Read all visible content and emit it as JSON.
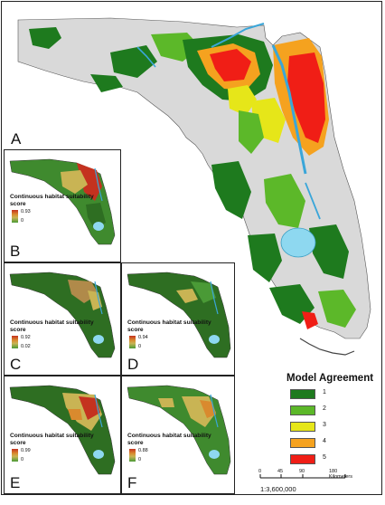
{
  "main_panel": {
    "label": "A"
  },
  "insets": [
    {
      "label": "B",
      "legend_title": "Continuous habitat suitability score",
      "max": "0.93",
      "min": "0"
    },
    {
      "label": "C",
      "legend_title": "Continuous habitat suitability score",
      "max": "0.92",
      "min": "0.02"
    },
    {
      "label": "D",
      "legend_title": "Continuous habitat suitability score",
      "max": "0.94",
      "min": "0"
    },
    {
      "label": "E",
      "legend_title": "Continuous habitat suitability score",
      "max": "0.99",
      "min": "0"
    },
    {
      "label": "F",
      "legend_title": "Continuous habitat suitability score",
      "max": "0.88",
      "min": "0"
    }
  ],
  "legend": {
    "title": "Model Agreement",
    "items": [
      {
        "label": "1",
        "color": "#1e7a1e"
      },
      {
        "label": "2",
        "color": "#5cb829"
      },
      {
        "label": "3",
        "color": "#e6e619"
      },
      {
        "label": "4",
        "color": "#f5a21f"
      },
      {
        "label": "5",
        "color": "#f01e16"
      }
    ]
  },
  "scale_bar": {
    "ticks": [
      "0",
      "45",
      "90",
      "180 Kilometers"
    ],
    "ratio": "1:3,600,000"
  },
  "colors": {
    "land_background": "#d9d9d9",
    "water": "#7fd0ea",
    "lake": "#8ed8f0"
  }
}
